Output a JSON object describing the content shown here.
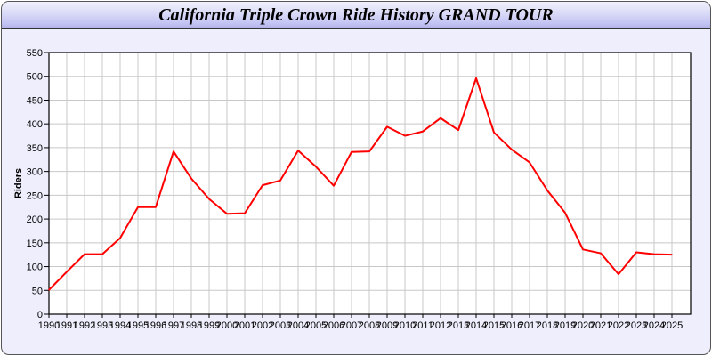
{
  "window": {
    "title": "California Triple Crown Ride History GRAND TOUR"
  },
  "chart_data": {
    "type": "line",
    "title": "California Triple Crown Ride History GRAND TOUR",
    "xlabel": "",
    "ylabel": "Riders",
    "ylim": [
      0,
      550
    ],
    "yticks": [
      0,
      50,
      100,
      150,
      200,
      250,
      300,
      350,
      400,
      450,
      500,
      550
    ],
    "grid": true,
    "line_color": "#ff0000",
    "x": [
      1990,
      1991,
      1992,
      1993,
      1994,
      1995,
      1996,
      1997,
      1998,
      1999,
      2000,
      2001,
      2002,
      2003,
      2004,
      2005,
      2006,
      2007,
      2008,
      2009,
      2010,
      2011,
      2012,
      2013,
      2014,
      2015,
      2016,
      2017,
      2018,
      2019,
      2020,
      2021,
      2022,
      2023,
      2024,
      2025
    ],
    "series": [
      {
        "values": [
          51,
          89,
          126,
          126,
          160,
          225,
          225,
          342,
          285,
          242,
          211,
          212,
          271,
          281,
          344,
          310,
          270,
          341,
          342,
          394,
          375,
          384,
          412,
          387,
          496,
          382,
          346,
          319,
          260,
          213,
          136,
          128,
          84,
          130,
          126,
          125
        ]
      }
    ]
  }
}
